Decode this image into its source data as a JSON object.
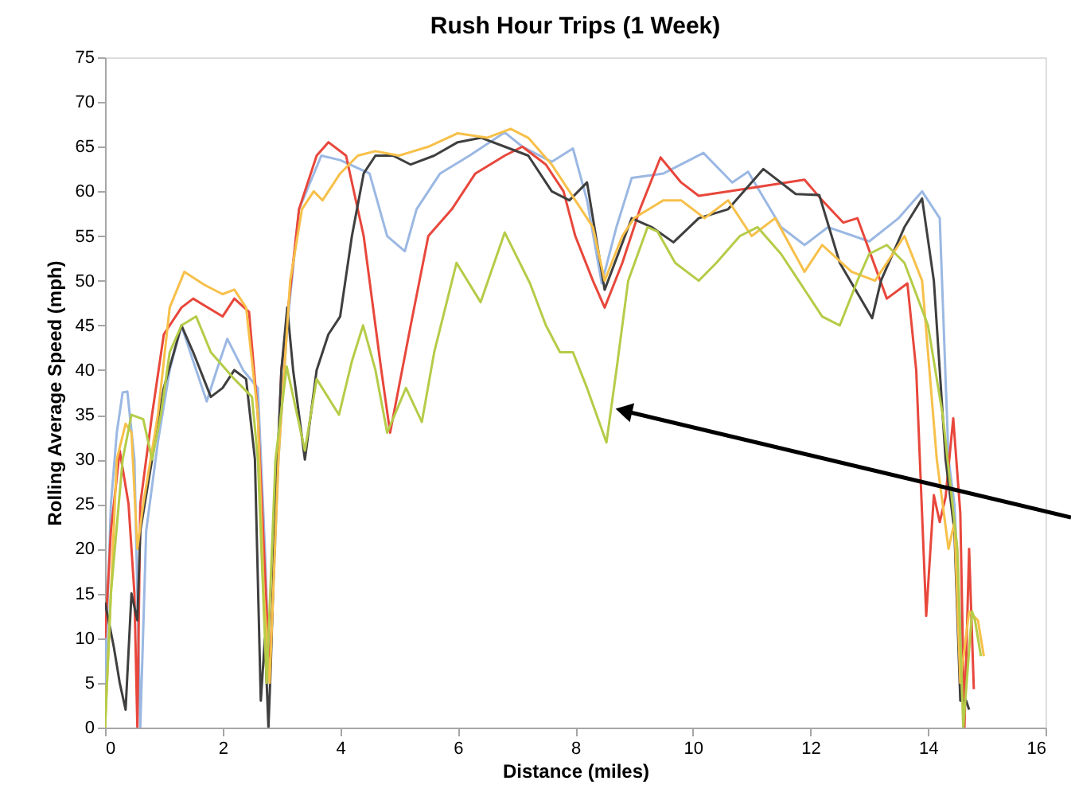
{
  "chart_data": {
    "type": "line",
    "title": "Rush Hour Trips (1 Week)",
    "xlabel": "Distance (miles)",
    "ylabel": "Rolling Average Speed (mph)",
    "xlim": [
      0,
      16
    ],
    "xticks": [
      0,
      2,
      4,
      6,
      8,
      10,
      12,
      14,
      16
    ],
    "ylim": [
      0,
      75
    ],
    "yticks": [
      0,
      5,
      10,
      15,
      20,
      25,
      30,
      35,
      40,
      45,
      50,
      55,
      60,
      65,
      70,
      75
    ],
    "grid": false,
    "legend": false,
    "marker": "none",
    "line_style": "solid",
    "series": [
      {
        "color": "#9bb8e3",
        "x": [
          0,
          0.1,
          0.2,
          0.3,
          0.38,
          0.5,
          0.55,
          0.6,
          0.7,
          0.9,
          1.1,
          1.3,
          1.5,
          1.73,
          1.9,
          2.08,
          2.35,
          2.6,
          2.72,
          2.8,
          2.95,
          3.1,
          3.3,
          3.68,
          4.0,
          4.5,
          4.8,
          5.1,
          5.3,
          5.7,
          6.2,
          6.8,
          7.1,
          7.6,
          7.96,
          8.2,
          8.45,
          8.7,
          8.96,
          9.5,
          10.18,
          10.67,
          10.94,
          11.5,
          11.9,
          12.3,
          13.0,
          13.5,
          13.9,
          14.2,
          14.35,
          14.45,
          14.6
        ],
        "values": [
          5,
          25,
          33,
          37.5,
          37.6,
          30,
          15,
          0,
          22,
          32,
          40,
          45,
          41,
          36.5,
          40,
          43.5,
          40,
          38,
          20,
          5,
          30,
          45,
          58,
          64,
          63.5,
          62,
          55,
          53.3,
          58,
          62,
          64,
          66.6,
          65,
          63.3,
          64.8,
          59,
          49.7,
          56,
          61.5,
          62,
          64.3,
          61,
          62.2,
          56,
          54,
          56,
          54.4,
          57,
          60,
          57,
          30,
          25,
          5
        ]
      },
      {
        "color": "#e8473c",
        "x": [
          0,
          0.1,
          0.25,
          0.4,
          0.5,
          0.55,
          0.6,
          0.8,
          1.0,
          1.3,
          1.5,
          2.0,
          2.2,
          2.45,
          2.6,
          2.8,
          3.0,
          3.3,
          3.6,
          3.8,
          4.1,
          4.4,
          4.7,
          4.85,
          5.2,
          5.5,
          5.9,
          6.3,
          6.8,
          7.1,
          7.5,
          7.8,
          8.0,
          8.3,
          8.5,
          8.8,
          9.1,
          9.45,
          9.8,
          10.1,
          10.6,
          11.2,
          11.9,
          12.2,
          12.56,
          12.8,
          13.3,
          13.65,
          13.8,
          13.97,
          14.1,
          14.2,
          14.3,
          14.43,
          14.55,
          14.62,
          14.7,
          14.78
        ],
        "values": [
          10,
          22,
          31,
          25,
          15,
          0,
          25,
          35,
          44,
          47,
          48,
          46,
          48,
          46.5,
          35,
          5.7,
          40,
          58,
          64,
          65.5,
          64,
          55,
          40,
          33,
          45,
          55,
          58,
          62,
          64,
          65,
          63,
          60,
          55,
          50,
          47,
          52,
          58,
          63.8,
          61,
          59.5,
          60,
          60.6,
          61.3,
          59,
          56.5,
          57,
          48,
          49.7,
          40,
          12.5,
          26,
          23,
          25.8,
          34.6,
          24,
          0,
          20,
          4.3
        ]
      },
      {
        "color": "#3f3f3f",
        "x": [
          0,
          0.15,
          0.25,
          0.35,
          0.45,
          0.55,
          0.6,
          0.8,
          1.0,
          1.3,
          1.5,
          1.8,
          2.0,
          2.2,
          2.4,
          2.55,
          2.65,
          2.72,
          2.78,
          2.82,
          2.9,
          3.0,
          3.1,
          3.2,
          3.4,
          3.6,
          3.8,
          4.0,
          4.2,
          4.4,
          4.6,
          4.9,
          5.2,
          5.6,
          6.0,
          6.4,
          6.8,
          7.2,
          7.6,
          7.9,
          8.2,
          8.5,
          8.96,
          9.3,
          9.67,
          10.1,
          10.6,
          11.2,
          11.75,
          12.15,
          12.5,
          13.05,
          13.2,
          13.6,
          13.9,
          14.1,
          14.3,
          14.45,
          14.55,
          14.65,
          14.7
        ],
        "values": [
          14,
          9,
          5,
          2,
          15,
          12,
          22,
          30,
          38,
          45,
          42,
          37,
          38,
          40,
          39,
          30,
          3,
          10,
          0,
          7,
          25,
          40,
          47,
          40,
          30,
          40,
          44,
          46,
          55,
          62,
          64,
          64,
          63,
          64,
          65.5,
          66,
          65,
          64,
          60,
          59,
          61,
          49,
          57,
          56,
          54.3,
          57,
          58,
          62.5,
          59.7,
          59.6,
          52,
          45.8,
          50,
          56,
          59.2,
          50,
          30,
          22,
          3,
          3,
          2
        ]
      },
      {
        "color": "#f7c04a",
        "x": [
          0,
          0.2,
          0.35,
          0.45,
          0.55,
          0.65,
          0.9,
          1.1,
          1.35,
          1.7,
          2.0,
          2.2,
          2.4,
          2.6,
          2.7,
          2.8,
          2.95,
          3.15,
          3.35,
          3.55,
          3.7,
          4.0,
          4.3,
          4.6,
          5.0,
          5.5,
          6.0,
          6.5,
          6.9,
          7.2,
          7.6,
          8.0,
          8.3,
          8.5,
          8.8,
          9.0,
          9.5,
          9.8,
          10.2,
          10.6,
          11.0,
          11.4,
          11.9,
          12.2,
          12.7,
          13.1,
          13.4,
          13.6,
          13.9,
          14.15,
          14.35,
          14.45,
          14.55,
          14.7,
          14.85,
          14.95
        ],
        "values": [
          0,
          30,
          34,
          33,
          20,
          25,
          35,
          47,
          51,
          49.5,
          48.5,
          49,
          47,
          35,
          15,
          5,
          30,
          50,
          58,
          60,
          59,
          62,
          64,
          64.5,
          64,
          65,
          66.5,
          66,
          67,
          66,
          63,
          59,
          56,
          50,
          55,
          57,
          59,
          59,
          57,
          59,
          55,
          57,
          51,
          54,
          51,
          50,
          53,
          55,
          50,
          30,
          20,
          23,
          5,
          13,
          12,
          8
        ]
      },
      {
        "color": "#b5cc48",
        "x": [
          0,
          0.1,
          0.3,
          0.45,
          0.65,
          0.8,
          0.95,
          1.1,
          1.3,
          1.55,
          1.8,
          2.2,
          2.5,
          2.6,
          2.75,
          2.9,
          3.09,
          3.4,
          3.6,
          3.98,
          4.2,
          4.39,
          4.6,
          4.8,
          5.12,
          5.39,
          5.6,
          5.98,
          6.39,
          6.8,
          7.23,
          7.5,
          7.74,
          7.96,
          8.2,
          8.53,
          8.7,
          8.9,
          9.23,
          9.4,
          9.7,
          10.1,
          10.4,
          10.8,
          11.1,
          11.5,
          11.8,
          12.2,
          12.5,
          12.8,
          13.0,
          13.3,
          13.6,
          14.0,
          14.25,
          14.5,
          14.6,
          14.75,
          14.8,
          14.9
        ],
        "values": [
          0,
          15,
          30,
          35,
          34.5,
          30,
          35,
          42,
          45,
          46,
          42,
          39,
          37,
          30,
          5,
          30,
          40.4,
          31,
          39,
          35,
          41,
          45,
          40,
          33,
          38,
          34.2,
          42,
          52,
          47.6,
          55.4,
          49.7,
          45,
          42,
          42,
          38,
          31.9,
          40,
          50,
          56,
          55.5,
          52,
          50,
          52,
          55,
          56,
          53,
          50,
          46,
          45,
          50,
          53,
          54,
          52,
          45,
          35,
          20,
          0,
          13,
          12,
          8
        ]
      }
    ]
  }
}
